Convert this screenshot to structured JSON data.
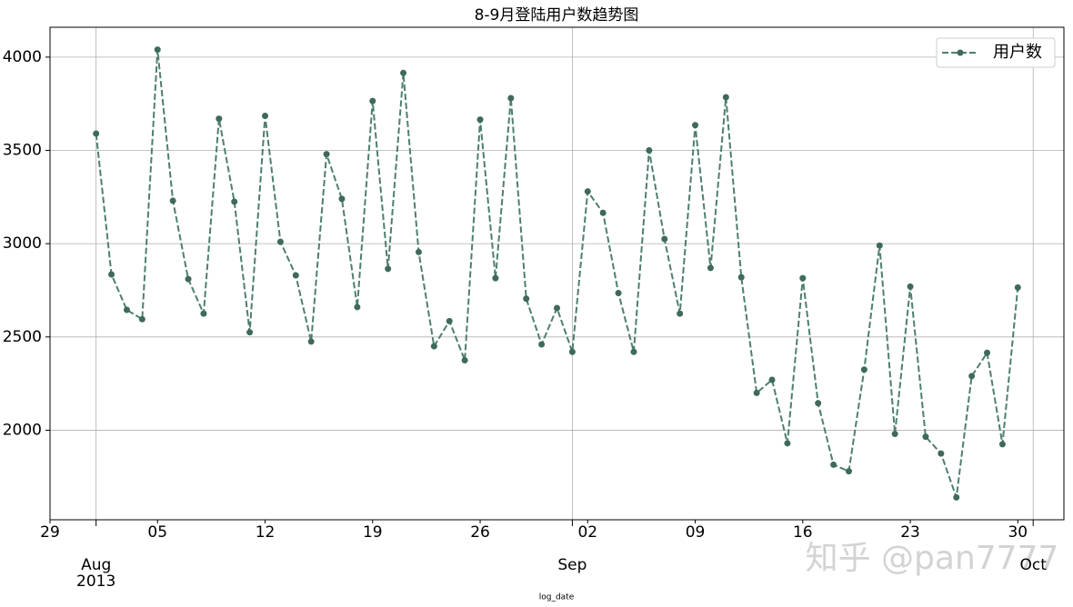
{
  "chart_data": {
    "type": "line",
    "title": "8-9月登陆用户数趋势图",
    "xlabel": "log_date",
    "x": [
      "2013-08-01",
      "2013-08-02",
      "2013-08-03",
      "2013-08-04",
      "2013-08-05",
      "2013-08-06",
      "2013-08-07",
      "2013-08-08",
      "2013-08-09",
      "2013-08-10",
      "2013-08-11",
      "2013-08-12",
      "2013-08-13",
      "2013-08-14",
      "2013-08-15",
      "2013-08-16",
      "2013-08-17",
      "2013-08-18",
      "2013-08-19",
      "2013-08-20",
      "2013-08-21",
      "2013-08-22",
      "2013-08-23",
      "2013-08-24",
      "2013-08-25",
      "2013-08-26",
      "2013-08-27",
      "2013-08-28",
      "2013-08-29",
      "2013-08-30",
      "2013-08-31",
      "2013-09-01",
      "2013-09-02",
      "2013-09-03",
      "2013-09-04",
      "2013-09-05",
      "2013-09-06",
      "2013-09-07",
      "2013-09-08",
      "2013-09-09",
      "2013-09-10",
      "2013-09-11",
      "2013-09-12",
      "2013-09-13",
      "2013-09-14",
      "2013-09-15",
      "2013-09-16",
      "2013-09-17",
      "2013-09-18",
      "2013-09-19",
      "2013-09-20",
      "2013-09-21",
      "2013-09-22",
      "2013-09-23",
      "2013-09-24",
      "2013-09-25",
      "2013-09-26",
      "2013-09-27",
      "2013-09-28",
      "2013-09-29",
      "2013-09-30"
    ],
    "series": [
      {
        "name": "用户数",
        "color": "#4e7f6e",
        "marker_color": "#3f6a5a",
        "linestyle": "dashed",
        "values": [
          3590,
          2835,
          2645,
          2595,
          4040,
          3230,
          2810,
          2625,
          3670,
          3225,
          2525,
          3685,
          3010,
          2830,
          2475,
          3480,
          3240,
          2660,
          3765,
          2865,
          3915,
          2955,
          2450,
          2585,
          2375,
          3665,
          2815,
          3780,
          2705,
          2460,
          2655,
          2420,
          3280,
          3165,
          2735,
          2420,
          3500,
          3025,
          2625,
          3635,
          2870,
          3785,
          2820,
          2200,
          2270,
          1930,
          2815,
          2145,
          1815,
          1780,
          2325,
          2990,
          1980,
          2770,
          1965,
          1875,
          1640,
          2290,
          2415,
          1925,
          2765
        ]
      }
    ],
    "xlim": [
      "2013-07-29",
      "2013-10-03"
    ],
    "ylim": [
      1520,
      4160
    ],
    "yticks": [
      2000,
      2500,
      3000,
      3500,
      4000
    ],
    "xticks": [
      {
        "value": "2013-08-01",
        "label": "Aug"
      },
      {
        "value": "2013-09-01",
        "label": "Sep"
      },
      {
        "value": "2013-10-01",
        "label": "Oct"
      }
    ],
    "year_label": "2013",
    "xticks_minor": [
      {
        "value": "2013-07-29",
        "label": "29"
      },
      {
        "value": "2013-08-05",
        "label": "05"
      },
      {
        "value": "2013-08-12",
        "label": "12"
      },
      {
        "value": "2013-08-19",
        "label": "19"
      },
      {
        "value": "2013-08-26",
        "label": "26"
      },
      {
        "value": "2013-09-02",
        "label": "02"
      },
      {
        "value": "2013-09-09",
        "label": "09"
      },
      {
        "value": "2013-09-16",
        "label": "16"
      },
      {
        "value": "2013-09-23",
        "label": "23"
      },
      {
        "value": "2013-09-30",
        "label": "30"
      }
    ],
    "grid": true,
    "legend": "upper right",
    "watermark": "知乎 @pan7777"
  }
}
